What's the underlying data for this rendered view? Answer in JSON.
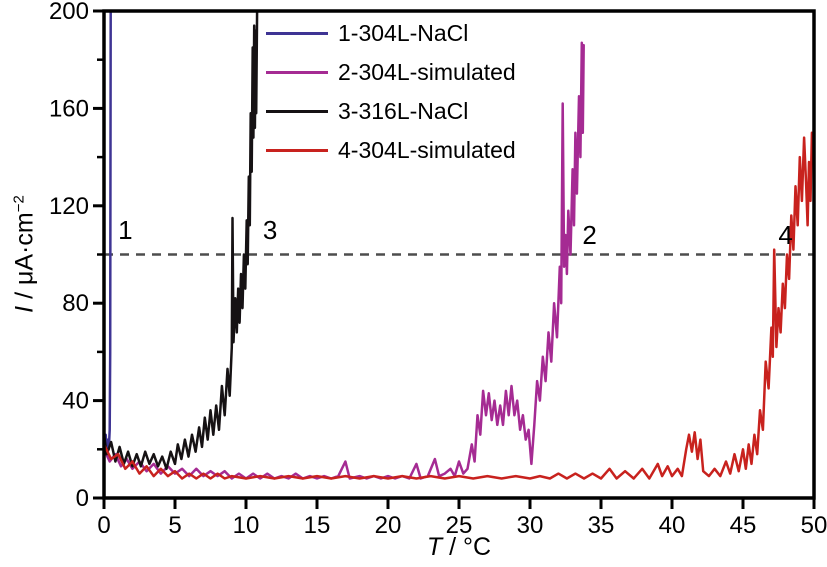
{
  "figure": {
    "background": "#ffffff",
    "border_color": "#000000",
    "tick_color": "#000000"
  },
  "chart_data": {
    "type": "line",
    "title": "",
    "xlabel": "T / °C",
    "ylabel": "I / μA·cm⁻²",
    "xlabel_parts": {
      "var": "T",
      "rest": " / °C"
    },
    "ylabel_parts": {
      "var": "I",
      "mid": " / μA·cm",
      "sup": "−2"
    },
    "xlim": [
      0,
      50
    ],
    "ylim": [
      0,
      200
    ],
    "x_ticks": [
      0,
      5,
      10,
      15,
      20,
      25,
      30,
      35,
      40,
      45,
      50
    ],
    "y_ticks": [
      0,
      40,
      80,
      120,
      160,
      200
    ],
    "y_minor_ticks": [
      20,
      60,
      100,
      140,
      180
    ],
    "grid": false,
    "legend_position": "top-left-inside",
    "threshold_line": {
      "value": 100,
      "style": "dashed",
      "color": "#4d4d4d"
    },
    "annotations": [
      {
        "label": "1",
        "x": 1.5,
        "y": 110
      },
      {
        "label": "3",
        "x": 11.7,
        "y": 110
      },
      {
        "label": "2",
        "x": 34.2,
        "y": 108
      },
      {
        "label": "4",
        "x": 48.0,
        "y": 108
      }
    ],
    "series": [
      {
        "name": "1-304L-NaCl",
        "color": "#3e3494",
        "points": [
          [
            0.05,
            20
          ],
          [
            0.12,
            26
          ],
          [
            0.2,
            19
          ],
          [
            0.28,
            24
          ],
          [
            0.34,
            20
          ],
          [
            0.4,
            28
          ],
          [
            0.44,
            60
          ],
          [
            0.47,
            200
          ]
        ]
      },
      {
        "name": "2-304L-simulated",
        "color": "#a52b93",
        "points": [
          [
            0,
            20
          ],
          [
            0.4,
            15
          ],
          [
            0.8,
            18
          ],
          [
            1.2,
            13
          ],
          [
            1.6,
            16
          ],
          [
            2,
            12
          ],
          [
            2.5,
            15
          ],
          [
            3,
            11
          ],
          [
            3.5,
            14
          ],
          [
            4,
            10
          ],
          [
            4.5,
            13
          ],
          [
            5,
            10
          ],
          [
            5.5,
            12
          ],
          [
            6,
            9
          ],
          [
            6.5,
            12
          ],
          [
            7,
            9
          ],
          [
            7.5,
            11
          ],
          [
            8,
            9
          ],
          [
            8.5,
            11
          ],
          [
            9,
            8
          ],
          [
            9.5,
            10
          ],
          [
            10,
            8
          ],
          [
            10.5,
            10
          ],
          [
            11,
            8
          ],
          [
            11.5,
            10
          ],
          [
            12,
            8
          ],
          [
            12.5,
            9
          ],
          [
            13,
            8
          ],
          [
            13.5,
            10
          ],
          [
            14,
            8
          ],
          [
            14.5,
            9
          ],
          [
            15,
            8
          ],
          [
            15.5,
            9
          ],
          [
            16,
            8
          ],
          [
            16.5,
            9
          ],
          [
            17,
            15
          ],
          [
            17.3,
            8
          ],
          [
            18,
            9
          ],
          [
            18.5,
            8
          ],
          [
            19,
            9
          ],
          [
            19.5,
            8
          ],
          [
            20,
            9
          ],
          [
            20.5,
            8
          ],
          [
            21,
            9
          ],
          [
            21.5,
            8
          ],
          [
            22,
            14
          ],
          [
            22.3,
            8
          ],
          [
            22.8,
            9
          ],
          [
            23.3,
            16
          ],
          [
            23.6,
            9
          ],
          [
            24,
            10
          ],
          [
            24.4,
            12
          ],
          [
            24.7,
            9
          ],
          [
            25,
            15
          ],
          [
            25.3,
            10
          ],
          [
            25.6,
            12
          ],
          [
            25.9,
            22
          ],
          [
            26.1,
            15
          ],
          [
            26.3,
            34
          ],
          [
            26.5,
            26
          ],
          [
            26.7,
            44
          ],
          [
            26.9,
            34
          ],
          [
            27.1,
            43
          ],
          [
            27.3,
            32
          ],
          [
            27.5,
            40
          ],
          [
            27.7,
            30
          ],
          [
            27.9,
            38
          ],
          [
            28.1,
            30
          ],
          [
            28.3,
            44
          ],
          [
            28.5,
            34
          ],
          [
            28.7,
            46
          ],
          [
            28.9,
            34
          ],
          [
            29.1,
            40
          ],
          [
            29.3,
            28
          ],
          [
            29.5,
            34
          ],
          [
            29.7,
            24
          ],
          [
            29.9,
            28
          ],
          [
            30.1,
            14
          ],
          [
            30.3,
            30
          ],
          [
            30.5,
            48
          ],
          [
            30.7,
            40
          ],
          [
            30.9,
            58
          ],
          [
            31.1,
            48
          ],
          [
            31.3,
            68
          ],
          [
            31.5,
            56
          ],
          [
            31.7,
            80
          ],
          [
            31.9,
            66
          ],
          [
            32.1,
            95
          ],
          [
            32.2,
            80
          ],
          [
            32.3,
            162
          ],
          [
            32.4,
            95
          ],
          [
            32.5,
            108
          ],
          [
            32.6,
            92
          ],
          [
            32.7,
            118
          ],
          [
            32.85,
            100
          ],
          [
            33,
            135
          ],
          [
            33.1,
            112
          ],
          [
            33.2,
            150
          ],
          [
            33.3,
            125
          ],
          [
            33.45,
            165
          ],
          [
            33.55,
            140
          ],
          [
            33.65,
            187
          ],
          [
            33.72,
            150
          ],
          [
            33.78,
            186
          ]
        ]
      },
      {
        "name": "3-316L-NaCl",
        "color": "#161214",
        "points": [
          [
            0,
            26
          ],
          [
            0.2,
            18
          ],
          [
            0.5,
            23
          ],
          [
            0.8,
            15
          ],
          [
            1.1,
            21
          ],
          [
            1.4,
            14
          ],
          [
            1.7,
            19
          ],
          [
            2,
            13
          ],
          [
            2.3,
            18
          ],
          [
            2.6,
            13
          ],
          [
            2.9,
            19
          ],
          [
            3.2,
            14
          ],
          [
            3.5,
            18
          ],
          [
            3.8,
            13
          ],
          [
            4.1,
            17
          ],
          [
            4.4,
            12
          ],
          [
            4.7,
            19
          ],
          [
            5,
            14
          ],
          [
            5.2,
            22
          ],
          [
            5.45,
            16
          ],
          [
            5.7,
            24
          ],
          [
            5.95,
            17
          ],
          [
            6.2,
            26
          ],
          [
            6.45,
            19
          ],
          [
            6.7,
            29
          ],
          [
            6.9,
            21
          ],
          [
            7.1,
            33
          ],
          [
            7.3,
            24
          ],
          [
            7.5,
            36
          ],
          [
            7.7,
            26
          ],
          [
            7.9,
            38
          ],
          [
            8.1,
            28
          ],
          [
            8.3,
            46
          ],
          [
            8.5,
            34
          ],
          [
            8.7,
            53
          ],
          [
            8.85,
            42
          ],
          [
            9,
            62
          ],
          [
            9.05,
            115
          ],
          [
            9.12,
            64
          ],
          [
            9.25,
            82
          ],
          [
            9.35,
            68
          ],
          [
            9.45,
            86
          ],
          [
            9.55,
            72
          ],
          [
            9.65,
            92
          ],
          [
            9.75,
            78
          ],
          [
            9.85,
            100
          ],
          [
            9.95,
            86
          ],
          [
            10.05,
            114
          ],
          [
            10.12,
            96
          ],
          [
            10.2,
            132
          ],
          [
            10.27,
            112
          ],
          [
            10.33,
            158
          ],
          [
            10.4,
            134
          ],
          [
            10.47,
            185
          ],
          [
            10.52,
            148
          ],
          [
            10.58,
            194
          ],
          [
            10.63,
            152
          ],
          [
            10.68,
            192
          ],
          [
            10.72,
            158
          ],
          [
            10.78,
            200
          ]
        ]
      },
      {
        "name": "4-304L-simulated",
        "color": "#c8221e",
        "points": [
          [
            0,
            22
          ],
          [
            0.5,
            16
          ],
          [
            1,
            18
          ],
          [
            1.5,
            12
          ],
          [
            2,
            15
          ],
          [
            2.5,
            10
          ],
          [
            3,
            13
          ],
          [
            3.5,
            9
          ],
          [
            4,
            12
          ],
          [
            4.5,
            9
          ],
          [
            5,
            11
          ],
          [
            5.5,
            8
          ],
          [
            6,
            10
          ],
          [
            6.5,
            8
          ],
          [
            7,
            10
          ],
          [
            7.5,
            8
          ],
          [
            8,
            10
          ],
          [
            8.5,
            8
          ],
          [
            9,
            9
          ],
          [
            10,
            8
          ],
          [
            11,
            9
          ],
          [
            12,
            8
          ],
          [
            13,
            9
          ],
          [
            14,
            8
          ],
          [
            15,
            9
          ],
          [
            16,
            8
          ],
          [
            17,
            9
          ],
          [
            18,
            8
          ],
          [
            19,
            9
          ],
          [
            20,
            8
          ],
          [
            21,
            9
          ],
          [
            22,
            8
          ],
          [
            23,
            9
          ],
          [
            24,
            8
          ],
          [
            25,
            9
          ],
          [
            26,
            8
          ],
          [
            27,
            9
          ],
          [
            28,
            8
          ],
          [
            29,
            9
          ],
          [
            30,
            8
          ],
          [
            30.7,
            9
          ],
          [
            31.4,
            8
          ],
          [
            32,
            10
          ],
          [
            32.6,
            8
          ],
          [
            33.2,
            10
          ],
          [
            33.8,
            8
          ],
          [
            34.4,
            10
          ],
          [
            35,
            8
          ],
          [
            35.6,
            12
          ],
          [
            36.1,
            8
          ],
          [
            36.7,
            11
          ],
          [
            37.3,
            8
          ],
          [
            37.9,
            12
          ],
          [
            38.4,
            8
          ],
          [
            39,
            14
          ],
          [
            39.3,
            9
          ],
          [
            39.7,
            13
          ],
          [
            40,
            9
          ],
          [
            40.4,
            12
          ],
          [
            40.7,
            9
          ],
          [
            41,
            20
          ],
          [
            41.2,
            26
          ],
          [
            41.4,
            19
          ],
          [
            41.6,
            27
          ],
          [
            41.8,
            16
          ],
          [
            42,
            24
          ],
          [
            42.2,
            11
          ],
          [
            42.6,
            9
          ],
          [
            43,
            12
          ],
          [
            43.4,
            9
          ],
          [
            43.8,
            15
          ],
          [
            44.1,
            10
          ],
          [
            44.4,
            18
          ],
          [
            44.7,
            11
          ],
          [
            45,
            20
          ],
          [
            45.2,
            12
          ],
          [
            45.4,
            22
          ],
          [
            45.6,
            14
          ],
          [
            45.8,
            26
          ],
          [
            46,
            18
          ],
          [
            46.2,
            36
          ],
          [
            46.4,
            28
          ],
          [
            46.6,
            56
          ],
          [
            46.8,
            45
          ],
          [
            47,
            70
          ],
          [
            47.1,
            58
          ],
          [
            47.2,
            102
          ],
          [
            47.35,
            62
          ],
          [
            47.5,
            78
          ],
          [
            47.65,
            68
          ],
          [
            47.8,
            88
          ],
          [
            47.95,
            78
          ],
          [
            48.1,
            100
          ],
          [
            48.25,
            90
          ],
          [
            48.4,
            116
          ],
          [
            48.55,
            102
          ],
          [
            48.7,
            128
          ],
          [
            48.85,
            112
          ],
          [
            49,
            140
          ],
          [
            49.15,
            122
          ],
          [
            49.3,
            148
          ],
          [
            49.45,
            128
          ],
          [
            49.55,
            112
          ],
          [
            49.65,
            138
          ],
          [
            49.75,
            122
          ],
          [
            49.85,
            150
          ],
          [
            49.95,
            138
          ],
          [
            50,
            160
          ]
        ]
      }
    ]
  }
}
